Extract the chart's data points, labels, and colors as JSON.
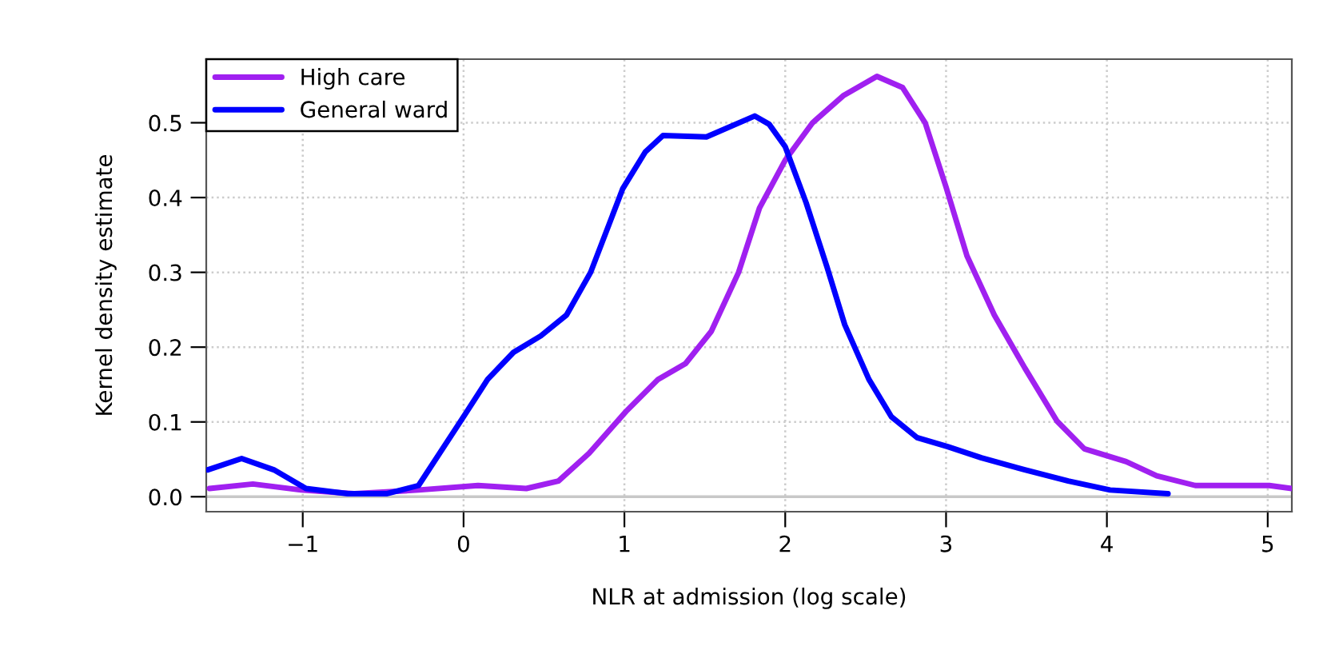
{
  "chart_data": {
    "type": "line",
    "xlabel": "NLR at admission (log scale)",
    "ylabel": "Kernel density estimate",
    "series": [
      {
        "name": "High care",
        "color": "#a020f0",
        "x": [
          -1.58,
          -1.31,
          -1.01,
          -0.68,
          -0.28,
          0.09,
          0.39,
          0.59,
          0.78,
          1.01,
          1.21,
          1.38,
          1.54,
          1.71,
          1.84,
          2.0,
          2.17,
          2.36,
          2.57,
          2.73,
          2.87,
          3.0,
          3.13,
          3.3,
          3.49,
          3.69,
          3.86,
          4.12,
          4.31,
          4.55,
          4.81,
          5.01,
          5.15
        ],
        "values": [
          0.011,
          0.017,
          0.009,
          0.004,
          0.009,
          0.015,
          0.011,
          0.021,
          0.058,
          0.114,
          0.157,
          0.178,
          0.221,
          0.3,
          0.386,
          0.45,
          0.5,
          0.536,
          0.562,
          0.547,
          0.5,
          0.414,
          0.322,
          0.243,
          0.172,
          0.101,
          0.064,
          0.047,
          0.028,
          0.015,
          0.015,
          0.015,
          0.011
        ]
      },
      {
        "name": "General ward",
        "color": "#0000ff",
        "x": [
          -1.59,
          -1.38,
          -1.18,
          -0.98,
          -0.72,
          -0.48,
          -0.28,
          0.0,
          0.15,
          0.31,
          0.48,
          0.64,
          0.79,
          0.99,
          1.13,
          1.24,
          1.51,
          1.81,
          1.9,
          2.0,
          2.13,
          2.26,
          2.37,
          2.52,
          2.66,
          2.82,
          3.01,
          3.22,
          3.49,
          3.76,
          4.02,
          4.38
        ],
        "values": [
          0.036,
          0.051,
          0.036,
          0.011,
          0.004,
          0.004,
          0.015,
          0.107,
          0.157,
          0.193,
          0.215,
          0.243,
          0.3,
          0.412,
          0.461,
          0.483,
          0.481,
          0.509,
          0.498,
          0.468,
          0.393,
          0.307,
          0.23,
          0.157,
          0.107,
          0.079,
          0.067,
          0.052,
          0.036,
          0.021,
          0.009,
          0.004
        ]
      }
    ],
    "xlim": [
      -1.6,
      5.15
    ],
    "ylim": [
      -0.02,
      0.585
    ],
    "xticks": [
      {
        "value": -1,
        "label": "−1"
      },
      0,
      1,
      2,
      3,
      4,
      5
    ],
    "yticks": [
      {
        "value": 0,
        "label": "0.0"
      },
      0.1,
      0.2,
      0.3,
      0.4,
      0.5
    ],
    "ref_lines": [
      {
        "axis": "y",
        "value": 0,
        "color": "#c8c8c8"
      }
    ],
    "grid": true,
    "legend": "top left"
  }
}
